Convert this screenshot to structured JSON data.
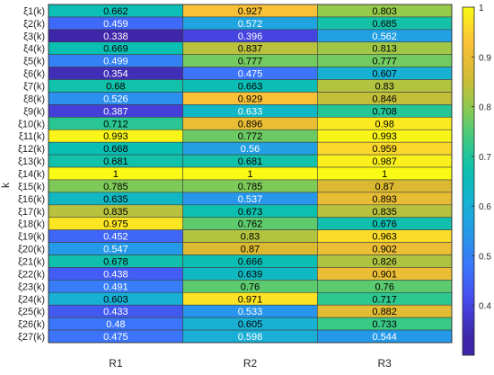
{
  "chart_data": {
    "type": "heatmap",
    "ylabel": "k",
    "columns": [
      "R1",
      "R2",
      "R3"
    ],
    "rows": [
      "ξ1(k)",
      "ξ2(k)",
      "ξ3(k)",
      "ξ4(k)",
      "ξ5(k)",
      "ξ6(k)",
      "ξ7(k)",
      "ξ8(k)",
      "ξ9(k)",
      "ξ10(k)",
      "ξ11(k)",
      "ξ12(k)",
      "ξ13(k)",
      "ξ14(k)",
      "ξ15(k)",
      "ξ16(k)",
      "ξ17(k)",
      "ξ18(k)",
      "ξ19(k)",
      "ξ20(k)",
      "ξ21(k)",
      "ξ22(k)",
      "ξ23(k)",
      "ξ24(k)",
      "ξ25(k)",
      "ξ26(k)",
      "ξ27(k)"
    ],
    "values": [
      [
        "0.662",
        "0.927",
        "0.803"
      ],
      [
        "0.459",
        "0.572",
        "0.685"
      ],
      [
        "0.338",
        "0.396",
        "0.562"
      ],
      [
        "0.669",
        "0.837",
        "0.813"
      ],
      [
        "0.499",
        "0.777",
        "0.777"
      ],
      [
        "0.354",
        "0.475",
        "0.607"
      ],
      [
        "0.68",
        "0.663",
        "0.83"
      ],
      [
        "0.526",
        "0.929",
        "0.846"
      ],
      [
        "0.387",
        "0.633",
        "0.708"
      ],
      [
        "0.712",
        "0.896",
        "0.98"
      ],
      [
        "0.993",
        "0.772",
        "0.993"
      ],
      [
        "0.668",
        "0.56",
        "0.959"
      ],
      [
        "0.681",
        "0.681",
        "0.987"
      ],
      [
        "1",
        "1",
        "1"
      ],
      [
        "0.785",
        "0.785",
        "0.87"
      ],
      [
        "0.635",
        "0.537",
        "0.893"
      ],
      [
        "0.835",
        "0.673",
        "0.835"
      ],
      [
        "0.975",
        "0.762",
        "0.676"
      ],
      [
        "0.452",
        "0.83",
        "0.963"
      ],
      [
        "0.547",
        "0.87",
        "0.902"
      ],
      [
        "0.678",
        "0.666",
        "0.826"
      ],
      [
        "0.438",
        "0.639",
        "0.901"
      ],
      [
        "0.491",
        "0.76",
        "0.76"
      ],
      [
        "0.603",
        "0.971",
        "0.717"
      ],
      [
        "0.433",
        "0.533",
        "0.882"
      ],
      [
        "0.48",
        "0.605",
        "0.733"
      ],
      [
        "0.475",
        "0.598",
        "0.544"
      ]
    ],
    "colorbar": {
      "colormap": "parula",
      "range": [
        0.338,
        1
      ],
      "ticks": [
        "0.4",
        "0.5",
        "0.6",
        "0.7",
        "0.8",
        "0.9",
        "1"
      ]
    },
    "grid": true
  }
}
